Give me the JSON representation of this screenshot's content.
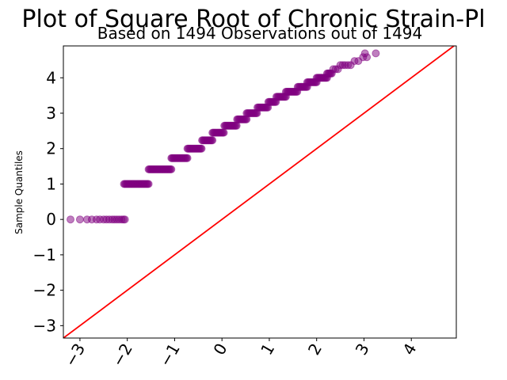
{
  "chart_data": {
    "type": "scatter",
    "title": "Plot of Square Root of Chronic Strain-Pl",
    "subtitle": "Based on 1494 Observations out of 1494",
    "xlabel": "",
    "ylabel": "Sample Quantiles",
    "xlim": [
      -3.35,
      4.95
    ],
    "ylim": [
      -3.35,
      4.9
    ],
    "xticks": [
      -3,
      -2,
      -1,
      0,
      1,
      2,
      3,
      4
    ],
    "yticks": [
      -3,
      -2,
      -1,
      0,
      1,
      2,
      3,
      4
    ],
    "xtick_labels": [
      "−3",
      "−2",
      "−1",
      "0",
      "1",
      "2",
      "3",
      "4"
    ],
    "ytick_labels": [
      "−3",
      "−2",
      "−1",
      "0",
      "1",
      "2",
      "3",
      "4"
    ],
    "grid": false,
    "reference_line": {
      "slope": 1,
      "intercept": 0,
      "color": "#ff0000"
    },
    "point_color": "#800080",
    "levels": [
      {
        "y": 0.0,
        "x": [
          -3.2,
          -3.0,
          -2.85,
          -2.75,
          -2.65,
          -2.58,
          -2.5,
          -2.44,
          -2.38,
          -2.32,
          -2.27,
          -2.22,
          -2.17,
          -2.12,
          -2.08,
          -2.05
        ]
      },
      {
        "y": 1.0,
        "x_range": [
          -2.07,
          -1.55
        ]
      },
      {
        "y": 1.414,
        "x_range": [
          -1.55,
          -1.07
        ]
      },
      {
        "y": 1.732,
        "x_range": [
          -1.07,
          -0.73
        ]
      },
      {
        "y": 2.0,
        "x_range": [
          -0.73,
          -0.42
        ]
      },
      {
        "y": 2.236,
        "x_range": [
          -0.42,
          -0.2
        ]
      },
      {
        "y": 2.449,
        "x_range": [
          -0.2,
          0.05
        ]
      },
      {
        "y": 2.646,
        "x_range": [
          0.05,
          0.32
        ]
      },
      {
        "y": 2.828,
        "x_range": [
          0.32,
          0.52
        ]
      },
      {
        "y": 3.0,
        "x_range": [
          0.52,
          0.75
        ]
      },
      {
        "y": 3.162,
        "x_range": [
          0.75,
          0.98
        ]
      },
      {
        "y": 3.317,
        "x_range": [
          0.98,
          1.15
        ]
      },
      {
        "y": 3.464,
        "x_range": [
          1.15,
          1.35
        ]
      },
      {
        "y": 3.606,
        "x_range": [
          1.35,
          1.6
        ]
      },
      {
        "y": 3.742,
        "x_range": [
          1.6,
          1.8
        ]
      },
      {
        "y": 3.873,
        "x_range": [
          1.8,
          2.0
        ]
      },
      {
        "y": 4.0,
        "x_range": [
          2.0,
          2.22
        ]
      },
      {
        "y": 4.123,
        "x_range": [
          2.22,
          2.33
        ]
      },
      {
        "y": 4.243,
        "x": [
          2.35,
          2.4,
          2.45
        ]
      },
      {
        "y": 4.359,
        "x": [
          2.5,
          2.55,
          2.6,
          2.66,
          2.72
        ]
      },
      {
        "y": 4.472,
        "x": [
          2.8,
          2.88
        ]
      },
      {
        "y": 4.583,
        "x": [
          2.98,
          3.06
        ]
      },
      {
        "y": 4.69,
        "x": [
          3.02,
          3.25
        ]
      }
    ]
  }
}
